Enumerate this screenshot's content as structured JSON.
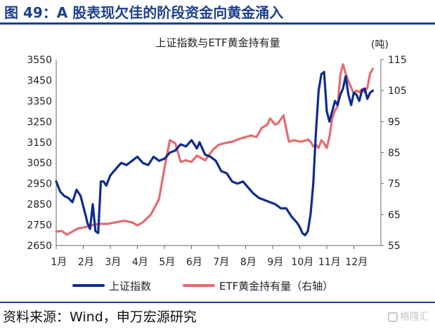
{
  "header": {
    "title": "图 49：A 股表现欠佳的阶段资金向黄金涌入"
  },
  "footer": {
    "source": "资料来源：Wind，申万宏源研究",
    "watermark": "格隆汇"
  },
  "chart_data": {
    "type": "line",
    "title": "上证指数与ETF黄金持有量",
    "y2_unit": "(吨)",
    "x_ticks": [
      "1月",
      "2月",
      "3月",
      "4月",
      "5月",
      "6月",
      "7月",
      "8月",
      "9月",
      "10月",
      "11月",
      "12月"
    ],
    "ylim_left": [
      2650,
      3550
    ],
    "yticks_left": [
      3550,
      3450,
      3350,
      3250,
      3150,
      3050,
      2950,
      2850,
      2750,
      2650
    ],
    "ylim_right": [
      55,
      115
    ],
    "yticks_right": [
      115,
      105,
      95,
      85,
      75,
      65,
      55
    ],
    "legend_position": "bottom",
    "series": [
      {
        "name": "上证指数",
        "axis": "left",
        "color": "#0d2c8f",
        "x": [
          0.0,
          0.15,
          0.3,
          0.45,
          0.6,
          0.75,
          0.9,
          1.0,
          1.1,
          1.15,
          1.25,
          1.35,
          1.45,
          1.55,
          1.65,
          1.75,
          1.85,
          2.0,
          2.2,
          2.4,
          2.6,
          2.8,
          3.0,
          3.2,
          3.4,
          3.6,
          3.8,
          4.0,
          4.2,
          4.4,
          4.6,
          4.8,
          5.0,
          5.2,
          5.3,
          5.5,
          5.7,
          5.9,
          6.1,
          6.3,
          6.5,
          6.7,
          6.9,
          7.1,
          7.3,
          7.5,
          7.7,
          7.9,
          8.1,
          8.3,
          8.5,
          8.7,
          8.9,
          9.0,
          9.1,
          9.2,
          9.3,
          9.4,
          9.5,
          9.55,
          9.6,
          9.7,
          9.8,
          9.9,
          10.0,
          10.1,
          10.2,
          10.3,
          10.4,
          10.5,
          10.6,
          10.7,
          10.8,
          10.9,
          11.0,
          11.1,
          11.2,
          11.3,
          11.4,
          11.5,
          11.6,
          11.7
        ],
        "y": [
          2960,
          2910,
          2890,
          2880,
          2860,
          2920,
          2890,
          2840,
          2790,
          2760,
          2730,
          2850,
          2720,
          2710,
          2960,
          2960,
          2940,
          2990,
          3020,
          3050,
          3040,
          3060,
          3080,
          3050,
          3040,
          3080,
          3060,
          3070,
          3100,
          3110,
          3140,
          3130,
          3160,
          3120,
          3150,
          3090,
          3080,
          3060,
          3010,
          3000,
          2960,
          2950,
          2960,
          2930,
          2900,
          2880,
          2870,
          2860,
          2850,
          2830,
          2830,
          2790,
          2760,
          2740,
          2710,
          2700,
          2720,
          2800,
          2950,
          3080,
          3200,
          3400,
          3480,
          3490,
          3300,
          3250,
          3300,
          3350,
          3330,
          3380,
          3410,
          3470,
          3380,
          3330,
          3390,
          3380,
          3350,
          3400,
          3410,
          3360,
          3390,
          3400
        ]
      },
      {
        "name": "ETF黄金持有量（右轴）",
        "axis": "right",
        "color": "#e56b6f",
        "x": [
          0.0,
          0.2,
          0.4,
          0.6,
          0.8,
          1.0,
          1.3,
          1.6,
          1.9,
          2.2,
          2.5,
          2.8,
          3.0,
          3.2,
          3.5,
          3.8,
          4.0,
          4.2,
          4.4,
          4.6,
          4.8,
          5.0,
          5.2,
          5.5,
          5.8,
          6.0,
          6.2,
          6.5,
          6.8,
          7.0,
          7.2,
          7.4,
          7.6,
          7.8,
          7.9,
          8.0,
          8.1,
          8.2,
          8.4,
          8.6,
          8.8,
          9.0,
          9.2,
          9.3,
          9.4,
          9.5,
          9.6,
          9.7,
          9.8,
          9.9,
          10.0,
          10.1,
          10.2,
          10.3,
          10.4,
          10.5,
          10.6,
          10.7,
          10.8,
          10.9,
          11.0,
          11.1,
          11.2,
          11.3,
          11.4,
          11.5,
          11.6,
          11.7
        ],
        "y": [
          59.5,
          59.7,
          58.5,
          59.5,
          60.5,
          60.8,
          61.5,
          62.0,
          62.0,
          62.5,
          63.0,
          62.5,
          61.5,
          62.5,
          65.0,
          70.0,
          80.0,
          89.0,
          88.0,
          82.0,
          82.5,
          82.0,
          84.0,
          82.5,
          86.0,
          87.5,
          88.0,
          88.5,
          89.5,
          90.0,
          90.5,
          90.0,
          93.0,
          94.0,
          96.0,
          95.0,
          94.0,
          94.5,
          97.0,
          88.5,
          89.0,
          88.5,
          88.8,
          89.2,
          88.5,
          87.0,
          87.5,
          86.5,
          89.0,
          88.0,
          86.5,
          90.0,
          96.0,
          98.5,
          100.0,
          110.0,
          113.5,
          110.5,
          108.0,
          106.0,
          104.0,
          105.0,
          104.5,
          105.5,
          104.5,
          106.0,
          110.5,
          112.0
        ]
      }
    ]
  }
}
